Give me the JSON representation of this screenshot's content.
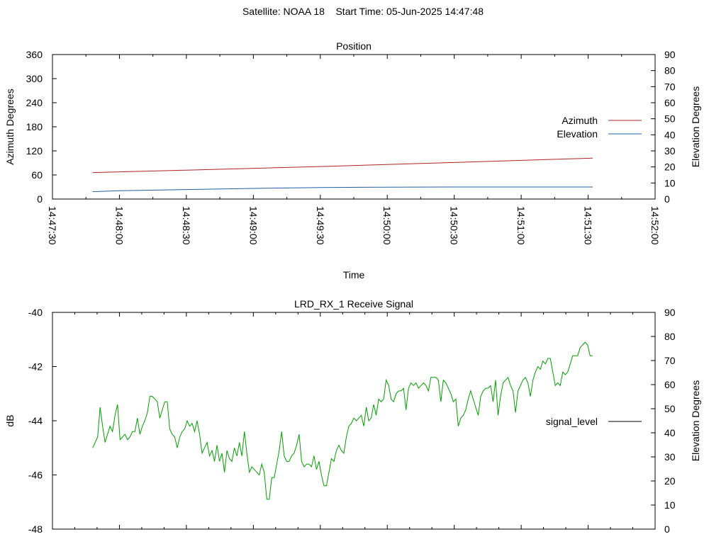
{
  "page_title": "Satellite: NOAA 18    Start Time: 05-Jun-2025 14:47:48",
  "chart_data": [
    {
      "type": "line",
      "title": "Position",
      "xlabel": "Time",
      "ylabel": "Azimuth Degrees",
      "y2label": "Elevation Degrees",
      "x_ticks": [
        "14:47:30",
        "14:48:00",
        "14:48:30",
        "14:49:00",
        "14:49:30",
        "14:50:00",
        "14:50:30",
        "14:51:00",
        "14:51:30",
        "14:52:00"
      ],
      "xlim": [
        "14:47:30",
        "14:52:00"
      ],
      "ylim": [
        0,
        360
      ],
      "y_ticks": [
        0,
        60,
        120,
        180,
        240,
        300,
        360
      ],
      "y2lim": [
        0,
        90
      ],
      "y2_ticks": [
        0,
        10,
        20,
        30,
        40,
        50,
        60,
        70,
        80,
        90
      ],
      "legend_position": "right",
      "grid": false,
      "series": [
        {
          "name": "Azimuth",
          "axis": "y",
          "color": "#b22222",
          "x": [
            "14:47:48",
            "14:48:30",
            "14:49:30",
            "14:50:30",
            "14:51:32"
          ],
          "values": [
            66,
            72,
            81,
            91,
            102
          ]
        },
        {
          "name": "Elevation",
          "axis": "y2",
          "color": "#1f5fa8",
          "x": [
            "14:47:48",
            "14:48:00",
            "14:48:30",
            "14:49:00",
            "14:49:30",
            "14:50:00",
            "14:50:30",
            "14:51:00",
            "14:51:32"
          ],
          "values": [
            4.6,
            5.2,
            5.9,
            6.6,
            7.2,
            7.4,
            7.5,
            7.5,
            7.5
          ]
        }
      ]
    },
    {
      "type": "line",
      "title": "LRD_RX_1 Receive Signal",
      "xlabel": "",
      "ylabel": "dB",
      "y2label": "Elevation Degrees",
      "x_start": "14:47:30",
      "x_end": "14:52:00",
      "x_minor_tick_step_seconds": 10,
      "ylim": [
        -48,
        -40
      ],
      "y_ticks": [
        -48,
        -46,
        -44,
        -42,
        -40
      ],
      "y2lim": [
        0,
        90
      ],
      "y2_ticks": [
        0,
        10,
        20,
        30,
        40,
        50,
        60,
        70,
        80,
        90
      ],
      "legend_position": "right",
      "grid": false,
      "series": [
        {
          "name": "signal_level",
          "color": "#00a000",
          "x_start": "14:47:48",
          "x_end": "14:51:32",
          "values": [
            -45.0,
            -44.8,
            -44.6,
            -43.5,
            -44.2,
            -44.8,
            -44.5,
            -44.2,
            -44.4,
            -43.8,
            -43.4,
            -44.7,
            -44.6,
            -44.5,
            -44.7,
            -44.6,
            -44.4,
            -44.4,
            -43.9,
            -44.5,
            -44.2,
            -44.0,
            -43.7,
            -43.1,
            -43.1,
            -43.2,
            -43.3,
            -43.9,
            -43.6,
            -43.3,
            -43.3,
            -44.3,
            -44.5,
            -44.6,
            -45.0,
            -44.6,
            -44.4,
            -44.3,
            -44.0,
            -44.2,
            -44.1,
            -44.4,
            -44.0,
            -44.5,
            -45.2,
            -45.0,
            -44.8,
            -45.3,
            -45.1,
            -45.5,
            -44.9,
            -45.5,
            -45.2,
            -45.9,
            -45.1,
            -45.4,
            -45.5,
            -45.0,
            -45.3,
            -44.8,
            -45.3,
            -44.4,
            -45.2,
            -45.9,
            -45.7,
            -45.8,
            -45.9,
            -46.0,
            -45.6,
            -45.9,
            -46.9,
            -46.9,
            -46.1,
            -46.1,
            -45.6,
            -45.1,
            -44.4,
            -45.3,
            -45.5,
            -45.5,
            -45.3,
            -45.2,
            -44.9,
            -44.5,
            -45.5,
            -45.7,
            -45.6,
            -45.6,
            -45.7,
            -45.3,
            -45.8,
            -45.5,
            -46.0,
            -46.4,
            -46.4,
            -45.9,
            -45.4,
            -45.5,
            -45.1,
            -44.9,
            -45.1,
            -45.2,
            -44.6,
            -44.2,
            -44.1,
            -43.9,
            -44.0,
            -43.9,
            -43.8,
            -44.2,
            -43.5,
            -44.0,
            -43.9,
            -43.4,
            -43.8,
            -43.2,
            -43.3,
            -43.2,
            -42.5,
            -42.7,
            -43.2,
            -43.3,
            -43.0,
            -42.9,
            -42.9,
            -42.8,
            -43.6,
            -42.8,
            -42.6,
            -42.7,
            -42.6,
            -42.8,
            -42.7,
            -42.6,
            -42.7,
            -42.9,
            -42.4,
            -42.4,
            -42.4,
            -42.5,
            -43.3,
            -42.5,
            -42.6,
            -42.8,
            -43.0,
            -43.3,
            -43.2,
            -44.2,
            -43.9,
            -43.8,
            -43.6,
            -43.2,
            -42.9,
            -43.2,
            -43.5,
            -43.8,
            -43.1,
            -42.9,
            -42.8,
            -42.8,
            -42.7,
            -43.3,
            -42.5,
            -43.8,
            -43.1,
            -42.6,
            -42.5,
            -42.4,
            -42.7,
            -42.9,
            -43.7,
            -42.9,
            -42.7,
            -42.5,
            -42.4,
            -42.6,
            -43.1,
            -42.5,
            -42.2,
            -42.0,
            -42.1,
            -41.8,
            -41.9,
            -41.7,
            -41.7,
            -42.2,
            -42.7,
            -42.6,
            -42.7,
            -42.2,
            -42.3,
            -42.2,
            -41.9,
            -41.6,
            -41.6,
            -41.6,
            -41.3,
            -41.2,
            -41.1,
            -41.2,
            -41.6,
            -41.6
          ]
        }
      ]
    }
  ]
}
